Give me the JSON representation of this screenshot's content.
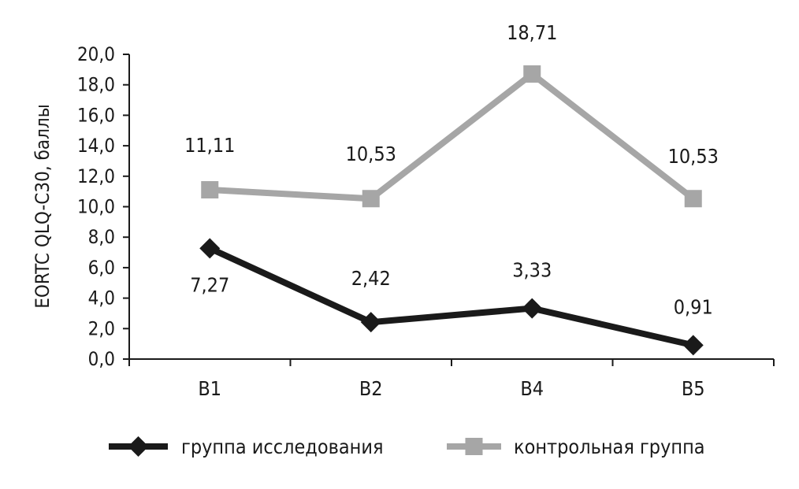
{
  "chart_data": {
    "type": "line",
    "categories": [
      "B1",
      "B2",
      "B4",
      "B5"
    ],
    "ylabel": "EORTC QLQ-C30, баллы",
    "ylim": [
      0,
      20
    ],
    "yticks": [
      "0,0",
      "2,0",
      "4,0",
      "6,0",
      "8,0",
      "10,0",
      "12,0",
      "14,0",
      "16,0",
      "18,0",
      "20,0"
    ],
    "grid": false,
    "legend_position": "bottom",
    "series": [
      {
        "name": "группа исследования",
        "values": [
          7.27,
          2.42,
          3.33,
          0.91
        ],
        "labels": [
          "7,27",
          "2,42",
          "3,33",
          "0,91"
        ],
        "color": "#1a1a1a",
        "marker": "diamond"
      },
      {
        "name": "контрольная группа",
        "values": [
          11.11,
          10.53,
          18.71,
          10.53
        ],
        "labels": [
          "11,11",
          "10,53",
          "18,71",
          "10,53"
        ],
        "color": "#a6a6a6",
        "marker": "square"
      }
    ]
  }
}
